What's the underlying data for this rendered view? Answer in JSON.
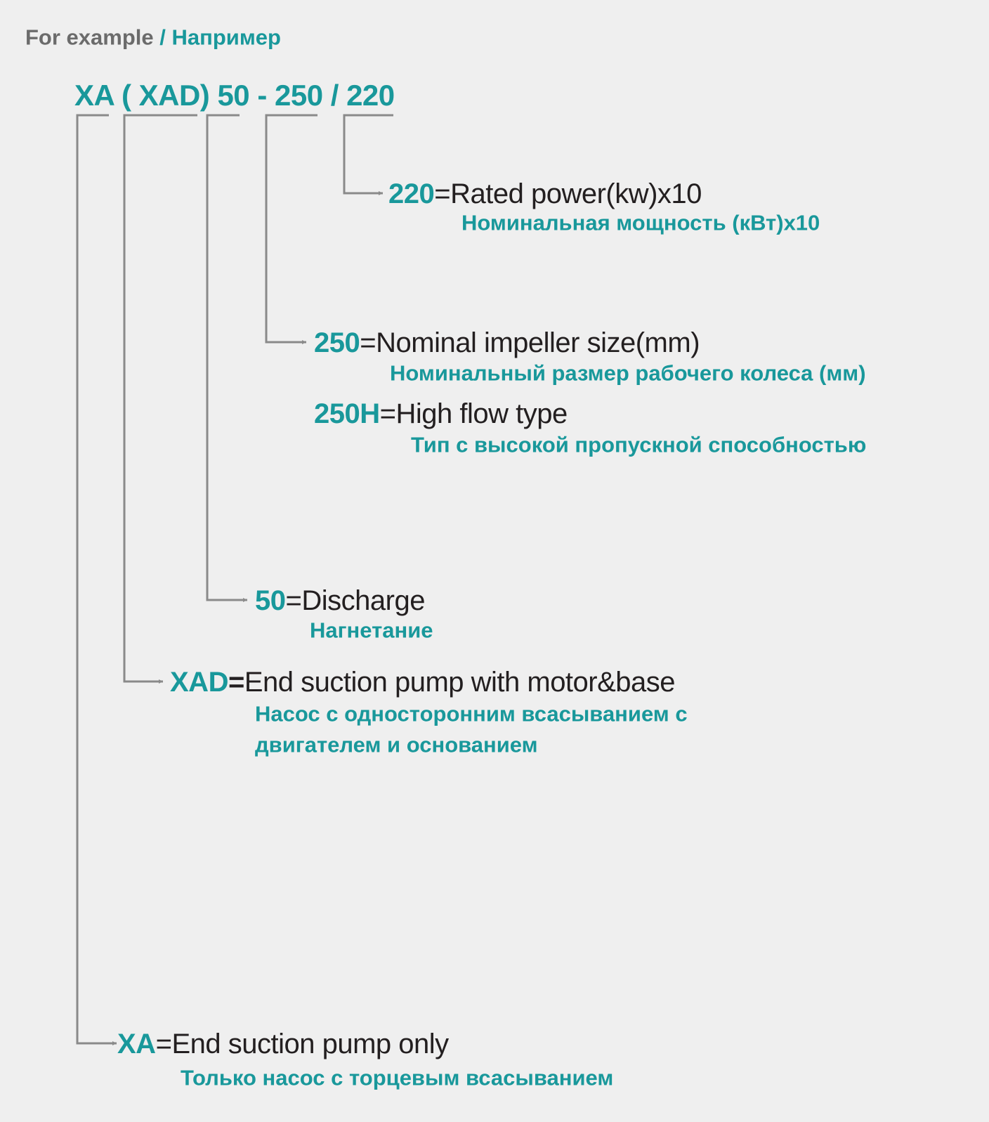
{
  "header": {
    "example_en": "For example",
    "example_ru": "/ Например"
  },
  "model_code": "XA ( XAD) 50 - 250 / 220",
  "colors": {
    "accent": "#19989b",
    "text": "#231f20",
    "muted": "#6b6b6b",
    "lines": "#8a8a8a",
    "background": "#efefef"
  },
  "entries": [
    {
      "code": "220",
      "eq": "=",
      "desc": "Rated power(kw)x10",
      "ru": "Номинальная мощность (кВт)x10"
    },
    {
      "code": "250",
      "eq": "=",
      "desc": "Nominal impeller size(mm)",
      "ru": "Номинальный размер рабочего колеса (мм)"
    },
    {
      "code": "250H",
      "eq": "=",
      "desc": "High flow type",
      "ru": "Тип с высокой пропускной способностью"
    },
    {
      "code": "50",
      "eq": "=",
      "desc": "Discharge",
      "ru": "Нагнетание"
    },
    {
      "code": "XAD",
      "eq": "=",
      "desc": "End suction pump with motor&base",
      "ru": "Насос с односторонним всасыванием с",
      "ru2": "двигателем и основанием"
    },
    {
      "code": "XA",
      "eq": "=",
      "desc": "End suction pump only",
      "ru": "Только насос с торцевым всасыванием"
    }
  ]
}
